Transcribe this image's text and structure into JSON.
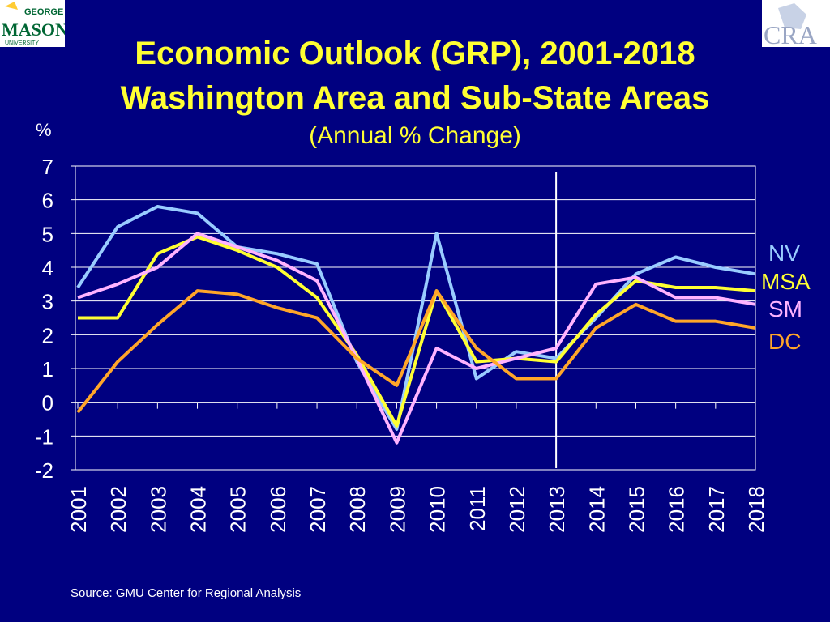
{
  "header": {
    "title_line1": "Economic Outlook (GRP), 2001-2018",
    "title_line2": "Washington Area and Sub-State Areas",
    "subtitle": "(Annual % Change)",
    "y_unit": "%"
  },
  "logos": {
    "left": {
      "name": "george-mason-university-logo",
      "lines": [
        "GEORGE",
        "MASON",
        "UNIVERSITY"
      ],
      "colors": [
        "#006633",
        "#ffcc33"
      ]
    },
    "right": {
      "name": "cra-logo",
      "text": "CRA",
      "color": "#aab4cc"
    }
  },
  "footer": {
    "source": "Source: GMU Center for Regional Analysis"
  },
  "chart_data": {
    "type": "line",
    "title": "Economic Outlook (GRP), 2001-2018",
    "ylabel": "%",
    "ylim": [
      -2,
      7
    ],
    "yticks": [
      7,
      6,
      5,
      4,
      3,
      2,
      1,
      0,
      -1,
      -2
    ],
    "grid": true,
    "forecast_divider_x": "2013",
    "x": [
      "2001",
      "2002",
      "2003",
      "2004",
      "2005",
      "2006",
      "2007",
      "2008",
      "2009",
      "2010",
      "2011",
      "2012",
      "2013",
      "2014",
      "2015",
      "2016",
      "2017",
      "2018"
    ],
    "series": [
      {
        "name": "NV",
        "color": "#99ccff",
        "values": [
          3.4,
          5.2,
          5.8,
          5.6,
          4.6,
          4.4,
          4.1,
          1.2,
          -0.8,
          5.0,
          0.7,
          1.5,
          1.3,
          2.5,
          3.8,
          4.3,
          4.0,
          3.8
        ]
      },
      {
        "name": "MSA",
        "color": "#ffff33",
        "values": [
          2.5,
          2.5,
          4.4,
          4.9,
          4.5,
          4.0,
          3.1,
          1.4,
          -0.7,
          3.3,
          1.2,
          1.3,
          1.2,
          2.6,
          3.6,
          3.4,
          3.4,
          3.3
        ]
      },
      {
        "name": "SM",
        "color": "#ffb3ff",
        "values": [
          3.1,
          3.5,
          4.0,
          5.0,
          4.6,
          4.2,
          3.6,
          1.3,
          -1.2,
          1.6,
          1.0,
          1.3,
          1.6,
          3.5,
          3.7,
          3.1,
          3.1,
          2.9
        ]
      },
      {
        "name": "DC",
        "color": "#ffa629",
        "values": [
          -0.3,
          1.2,
          2.3,
          3.3,
          3.2,
          2.8,
          2.5,
          1.3,
          0.5,
          3.3,
          1.6,
          0.7,
          0.7,
          2.2,
          2.9,
          2.4,
          2.4,
          2.2
        ]
      }
    ]
  }
}
